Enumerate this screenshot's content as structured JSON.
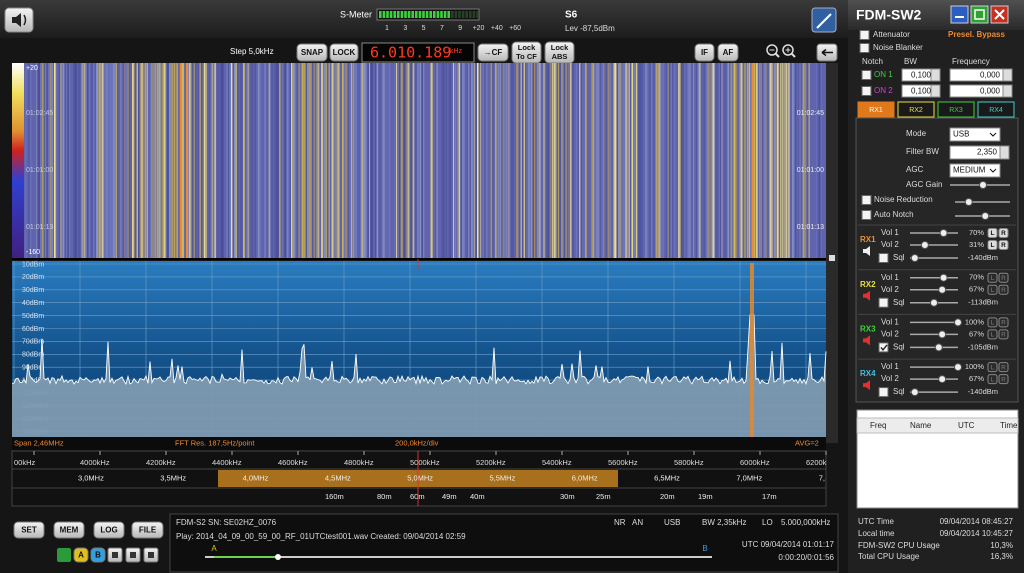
{
  "top": {
    "smeter_label": "S-Meter",
    "smeter_scale": [
      "1",
      "3",
      "5",
      "7",
      "9",
      "+20",
      "+40",
      "+60"
    ],
    "s_value": "S6",
    "level": "Lev -87,5dBm"
  },
  "toolbar": {
    "step": "Step 5,0kHz",
    "snap": "SNAP",
    "lock": "LOCK",
    "frequency": "6.010.189",
    "freq_unit": "kHz",
    "to_cf": "→CF",
    "lock_to_cf": [
      "Lock",
      "To CF"
    ],
    "lock_abs": [
      "Lock",
      "ABS"
    ],
    "if": "IF",
    "af": "AF"
  },
  "waterfall": {
    "scale_top": "+20",
    "scale_bottom": "-160",
    "times_left": [
      "01:02:45",
      "01:01:00",
      "01:01:13"
    ],
    "times_right": [
      "01:02:45",
      "01:01:00",
      "01:01:13"
    ]
  },
  "spectrum": {
    "db_labels": [
      "10dBm",
      "20dBm",
      "30dBm",
      "40dBm",
      "50dBm",
      "60dBm",
      "70dBm",
      "80dBm",
      "90dBm",
      "100dBm",
      "110dBm",
      "120dBm",
      "130dBm",
      "140dBm"
    ]
  },
  "status": {
    "span": "Span 2,46MHz",
    "fft": "FFT Res. 187,5Hz/point",
    "div": "200,0kHz/div",
    "avg": "AVG=2"
  },
  "freq_axis": [
    "00kHz",
    "4000kHz",
    "4200kHz",
    "4400kHz",
    "4600kHz",
    "4800kHz",
    "5000kHz",
    "5200kHz",
    "5400kHz",
    "5600kHz",
    "5800kHz",
    "6000kHz",
    "6200k"
  ],
  "bands": [
    "3,0MHz",
    "3,5MHz",
    "4,0MHz",
    "4,5MHz",
    "5,0MHz",
    "5,5MHz",
    "6,0MHz",
    "6,5MHz",
    "7,0MHz",
    "7,"
  ],
  "meters": [
    "160m",
    "80m",
    "60m",
    "49m",
    "40m",
    "30m",
    "25m",
    "20m",
    "19m",
    "17m"
  ],
  "bottom": {
    "buttons": [
      "SET",
      "MEM",
      "LOG",
      "FILE"
    ],
    "ab": [
      "A",
      "B"
    ],
    "device": "FDM-S2 SN: SE02HZ_0076",
    "nr": "NR",
    "an": "AN",
    "mode": "USB",
    "bw": "BW 2,35kHz",
    "lo_label": "LO",
    "lo": "5.000,000kHz",
    "play": "Play: 2014_04_09_00_59_00_RF_01UTCtest001.wav Created: 09/04/2014 02:59",
    "utc": "UTC 09/04/2014 01:01:17",
    "time": "0:00:20/0:01:56",
    "marker_a": "A",
    "marker_b": "B"
  },
  "panel": {
    "title": "FDM-SW2",
    "attenuator": "Attenuator",
    "presel": "Presel. Bypass",
    "noise_blanker": "Noise Blanker",
    "notch_headers": [
      "Notch",
      "BW",
      "Frequency"
    ],
    "notch_rows": [
      {
        "on": "ON 1",
        "bw": "0,100",
        "freq": "0,000"
      },
      {
        "on": "ON 2",
        "bw": "0,100",
        "freq": "0,000"
      }
    ],
    "rx_tabs": [
      "RX1",
      "RX2",
      "RX3",
      "RX4"
    ],
    "mode_label": "Mode",
    "mode": "USB",
    "filter_label": "Filter BW",
    "filter": "2,350",
    "agc_label": "AGC",
    "agc": "MEDIUM",
    "agc_gain": "AGC Gain",
    "noise_reduction": "Noise Reduction",
    "auto_notch": "Auto Notch",
    "lr": [
      "L",
      "R"
    ],
    "receivers": [
      {
        "name": "RX1",
        "vol1_label": "Vol 1",
        "vol1": "70%",
        "vol2_label": "Vol 2",
        "vol2": "31%",
        "sql_label": "Sql",
        "sql": "-140dBm"
      },
      {
        "name": "RX2",
        "vol1_label": "Vol 1",
        "vol1": "70%",
        "vol2_label": "Vol 2",
        "vol2": "67%",
        "sql_label": "Sql",
        "sql": "-113dBm"
      },
      {
        "name": "RX3",
        "vol1_label": "Vol 1",
        "vol1": "100%",
        "vol2_label": "Vol 2",
        "vol2": "67%",
        "sql_label": "Sql",
        "sql": "-105dBm"
      },
      {
        "name": "RX4",
        "vol1_label": "Vol 1",
        "vol1": "100%",
        "vol2_label": "Vol 2",
        "vol2": "67%",
        "sql_label": "Sql",
        "sql": "-140dBm"
      }
    ],
    "table_headers": [
      "Freq",
      "Name",
      "UTC",
      "Time"
    ],
    "footer": [
      [
        "UTC Time",
        "09/04/2014 08:45:27"
      ],
      [
        "Local time",
        "09/04/2014 10:45:27"
      ],
      [
        "FDM-SW2 CPU Usage",
        "10,3%"
      ],
      [
        "Total CPU Usage",
        "16,3%"
      ]
    ]
  }
}
